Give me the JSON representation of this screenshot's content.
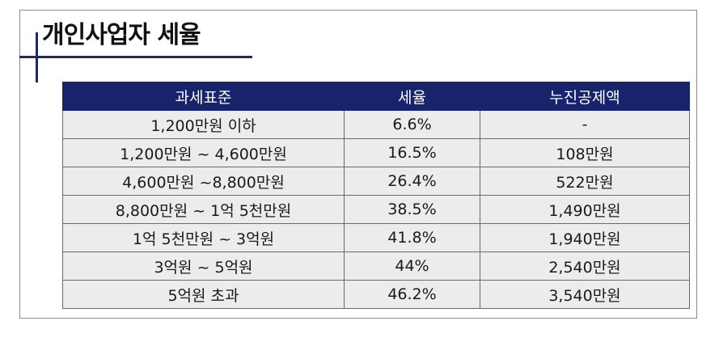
{
  "title": "개인사업자 세율",
  "table": {
    "headers": [
      "과세표준",
      "세율",
      "누진공제액"
    ],
    "rows": [
      [
        "1,200만원 이하",
        "6.6%",
        "-"
      ],
      [
        "1,200만원 ~ 4,600만원",
        "16.5%",
        "108만원"
      ],
      [
        "4,600만원 ~8,800만원",
        "26.4%",
        "522만원"
      ],
      [
        "8,800만원 ~ 1억 5천만원",
        "38.5%",
        "1,490만원"
      ],
      [
        "1억 5천만원 ~ 3억원",
        "41.8%",
        "1,940만원"
      ],
      [
        "3억원 ~ 5억원",
        "44%",
        "2,540만원"
      ],
      [
        "5억원 초과",
        "46.2%",
        "3,540만원"
      ]
    ]
  },
  "colors": {
    "header_bg": "#17236b",
    "accent_line": "#1c2b63",
    "row_bg": "#ececec"
  }
}
